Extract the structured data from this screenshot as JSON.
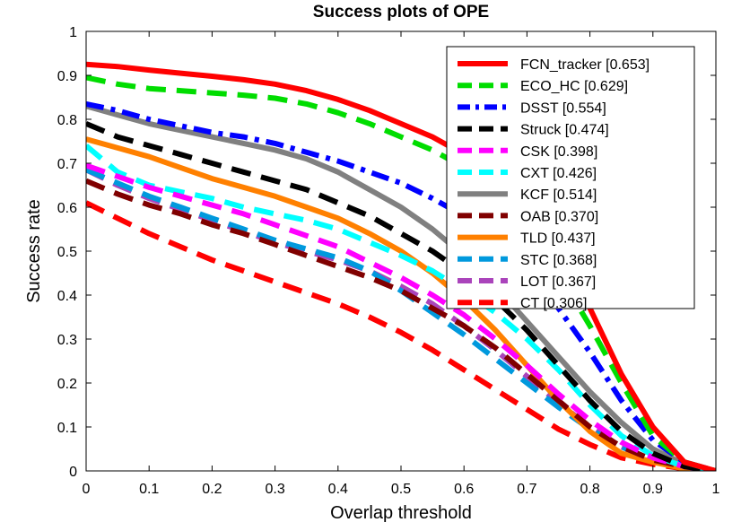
{
  "chart_data": {
    "type": "line",
    "title": "Success plots of OPE",
    "xlabel": "Overlap threshold",
    "ylabel": "Success rate",
    "xlim": [
      0,
      1
    ],
    "ylim": [
      0,
      1
    ],
    "xticks": [
      "0",
      "0.1",
      "0.2",
      "0.3",
      "0.4",
      "0.5",
      "0.6",
      "0.7",
      "0.8",
      "0.9",
      "1"
    ],
    "yticks": [
      "0",
      "0.1",
      "0.2",
      "0.3",
      "0.4",
      "0.5",
      "0.6",
      "0.7",
      "0.8",
      "0.9",
      "1"
    ],
    "grid": false,
    "legend_position": "top-right",
    "x": [
      0,
      0.05,
      0.1,
      0.15,
      0.2,
      0.25,
      0.3,
      0.35,
      0.4,
      0.45,
      0.5,
      0.55,
      0.6,
      0.65,
      0.7,
      0.75,
      0.8,
      0.85,
      0.9,
      0.95,
      1
    ],
    "series": [
      {
        "name": "FCN_tracker [0.653]",
        "color": "#ff0000",
        "dash": "solid",
        "values": [
          0.925,
          0.92,
          0.912,
          0.905,
          0.898,
          0.89,
          0.88,
          0.865,
          0.845,
          0.82,
          0.79,
          0.76,
          0.72,
          0.66,
          0.58,
          0.48,
          0.37,
          0.22,
          0.1,
          0.02,
          0.0
        ]
      },
      {
        "name": "ECO_HC [0.629]",
        "color": "#00dd00",
        "dash": "dash",
        "values": [
          0.895,
          0.88,
          0.87,
          0.865,
          0.86,
          0.855,
          0.848,
          0.835,
          0.815,
          0.79,
          0.76,
          0.73,
          0.69,
          0.63,
          0.55,
          0.45,
          0.33,
          0.2,
          0.08,
          0.02,
          0.0
        ]
      },
      {
        "name": "DSST [0.554]",
        "color": "#0000ff",
        "dash": "dashdot",
        "values": [
          0.835,
          0.82,
          0.8,
          0.785,
          0.77,
          0.76,
          0.745,
          0.725,
          0.705,
          0.68,
          0.655,
          0.62,
          0.58,
          0.53,
          0.46,
          0.37,
          0.27,
          0.16,
          0.07,
          0.02,
          0.0
        ]
      },
      {
        "name": "Struck [0.474]",
        "color": "#000000",
        "dash": "dash",
        "values": [
          0.79,
          0.76,
          0.74,
          0.72,
          0.7,
          0.68,
          0.66,
          0.64,
          0.61,
          0.58,
          0.54,
          0.5,
          0.45,
          0.39,
          0.32,
          0.24,
          0.16,
          0.09,
          0.04,
          0.01,
          0.0
        ]
      },
      {
        "name": "CSK [0.398]",
        "color": "#ff00ff",
        "dash": "dash",
        "values": [
          0.695,
          0.67,
          0.645,
          0.625,
          0.605,
          0.585,
          0.56,
          0.535,
          0.51,
          0.475,
          0.44,
          0.4,
          0.355,
          0.3,
          0.24,
          0.175,
          0.115,
          0.065,
          0.03,
          0.01,
          0.0
        ]
      },
      {
        "name": "CXT [0.426]",
        "color": "#00ffff",
        "dash": "dash",
        "values": [
          0.74,
          0.68,
          0.65,
          0.635,
          0.62,
          0.6,
          0.585,
          0.57,
          0.55,
          0.52,
          0.49,
          0.455,
          0.41,
          0.36,
          0.3,
          0.23,
          0.15,
          0.08,
          0.035,
          0.01,
          0.0
        ]
      },
      {
        "name": "KCF [0.514]",
        "color": "#808080",
        "dash": "solid",
        "values": [
          0.83,
          0.81,
          0.79,
          0.775,
          0.76,
          0.745,
          0.73,
          0.71,
          0.68,
          0.64,
          0.6,
          0.55,
          0.49,
          0.42,
          0.34,
          0.26,
          0.18,
          0.11,
          0.05,
          0.015,
          0.0
        ]
      },
      {
        "name": "OAB [0.370]",
        "color": "#800000",
        "dash": "dash",
        "values": [
          0.66,
          0.63,
          0.605,
          0.585,
          0.56,
          0.54,
          0.515,
          0.49,
          0.465,
          0.44,
          0.41,
          0.37,
          0.33,
          0.28,
          0.22,
          0.16,
          0.1,
          0.055,
          0.025,
          0.01,
          0.0
        ]
      },
      {
        "name": "TLD [0.437]",
        "color": "#ff8000",
        "dash": "solid",
        "values": [
          0.755,
          0.735,
          0.715,
          0.69,
          0.665,
          0.645,
          0.625,
          0.6,
          0.575,
          0.54,
          0.5,
          0.45,
          0.39,
          0.32,
          0.24,
          0.16,
          0.09,
          0.04,
          0.02,
          0.005,
          0.0
        ]
      },
      {
        "name": "STC [0.368]",
        "color": "#0099dd",
        "dash": "dash",
        "values": [
          0.685,
          0.655,
          0.625,
          0.6,
          0.575,
          0.55,
          0.525,
          0.505,
          0.485,
          0.455,
          0.41,
          0.36,
          0.31,
          0.255,
          0.2,
          0.145,
          0.095,
          0.055,
          0.025,
          0.01,
          0.0
        ]
      },
      {
        "name": "LOT [0.367]",
        "color": "#aa44bb",
        "dash": "dash",
        "values": [
          0.685,
          0.65,
          0.62,
          0.595,
          0.57,
          0.545,
          0.52,
          0.5,
          0.48,
          0.455,
          0.42,
          0.38,
          0.33,
          0.275,
          0.215,
          0.155,
          0.1,
          0.055,
          0.025,
          0.01,
          0.0
        ]
      },
      {
        "name": "CT [0.306]",
        "color": "#ff0000",
        "dash": "dash",
        "values": [
          0.61,
          0.575,
          0.54,
          0.51,
          0.48,
          0.455,
          0.43,
          0.405,
          0.38,
          0.35,
          0.315,
          0.275,
          0.23,
          0.185,
          0.14,
          0.095,
          0.06,
          0.03,
          0.015,
          0.005,
          0.0
        ]
      }
    ]
  }
}
